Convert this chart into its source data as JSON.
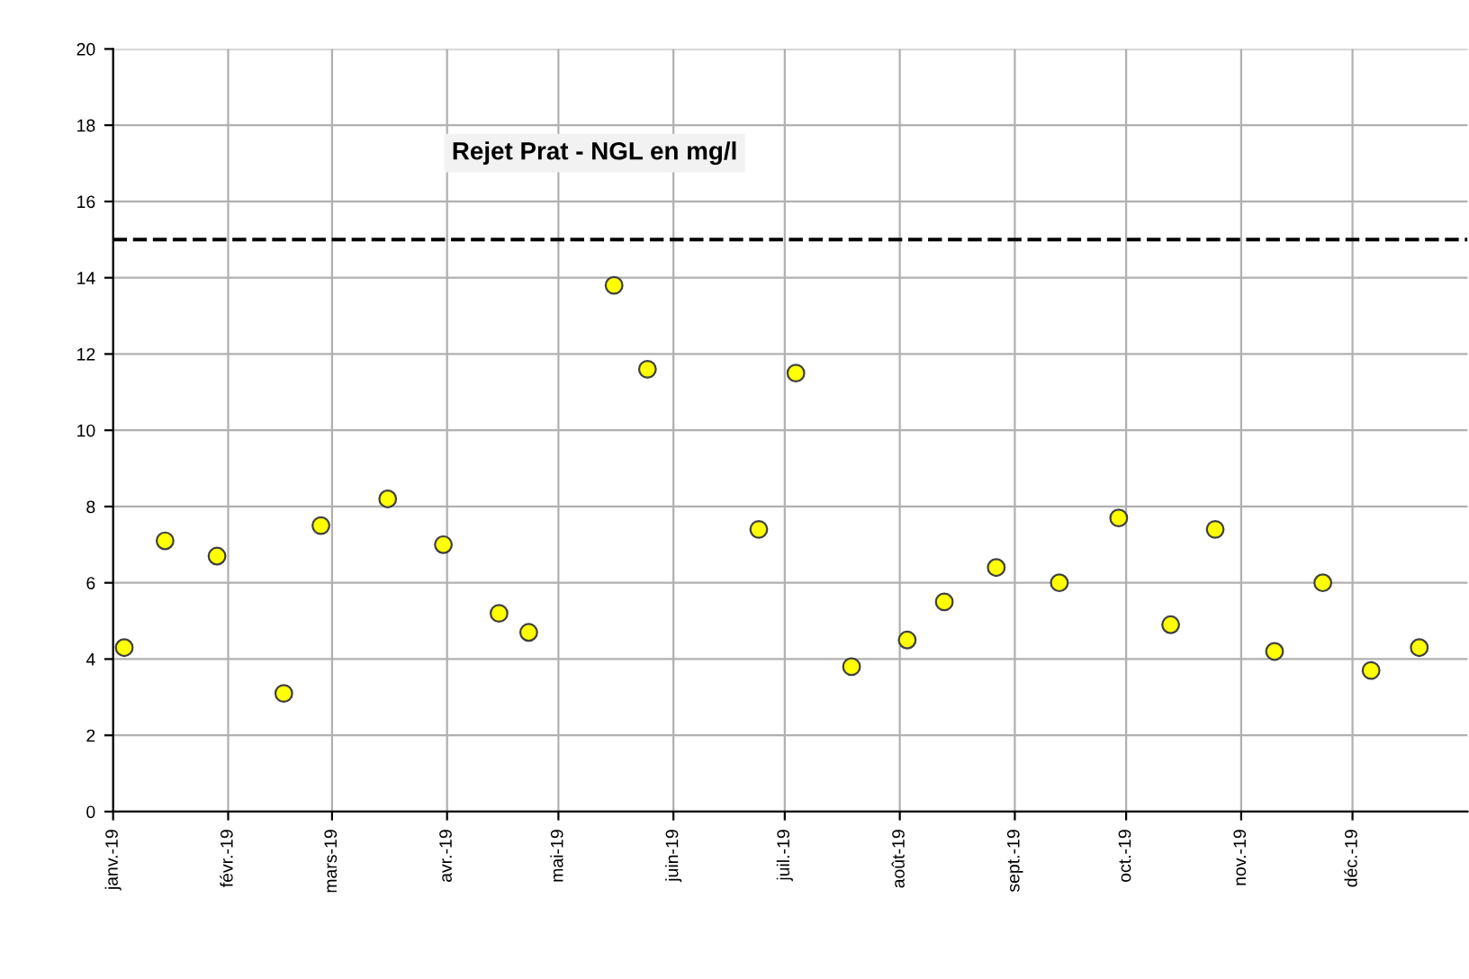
{
  "chart_data": {
    "type": "scatter",
    "title": "Rejet Prat - NGL en mg/l",
    "x": [
      "2019-01-04",
      "2019-01-15",
      "2019-01-29",
      "2019-02-16",
      "2019-02-26",
      "2019-03-16",
      "2019-03-31",
      "2019-04-15",
      "2019-04-23",
      "2019-05-16",
      "2019-05-25",
      "2019-06-24",
      "2019-07-04",
      "2019-07-19",
      "2019-08-03",
      "2019-08-13",
      "2019-08-27",
      "2019-09-13",
      "2019-09-29",
      "2019-10-13",
      "2019-10-25",
      "2019-11-10",
      "2019-11-23",
      "2019-12-06",
      "2019-12-19"
    ],
    "series": [
      {
        "color": "#ffff00",
        "values": [
          4.3,
          7.1,
          6.7,
          3.1,
          7.5,
          8.2,
          7.0,
          5.2,
          4.7,
          13.8,
          11.6,
          7.4,
          11.5,
          3.8,
          4.5,
          5.5,
          6.4,
          6.0,
          7.7,
          4.9,
          7.4,
          4.2,
          6.0,
          3.7,
          4.3
        ]
      }
    ],
    "marker": "circle",
    "xlim": [
      "2019-01-01",
      "2020-01-01"
    ],
    "xticks": [
      {
        "value": "2019-01-01",
        "label": "janv.-19"
      },
      {
        "value": "2019-02-01",
        "label": "févr.-19"
      },
      {
        "value": "2019-03-01",
        "label": "mars-19"
      },
      {
        "value": "2019-04-01",
        "label": "avr.-19"
      },
      {
        "value": "2019-05-01",
        "label": "mai-19"
      },
      {
        "value": "2019-06-01",
        "label": "juin-19"
      },
      {
        "value": "2019-07-01",
        "label": "juil.-19"
      },
      {
        "value": "2019-08-01",
        "label": "août-19"
      },
      {
        "value": "2019-09-01",
        "label": "sept.-19"
      },
      {
        "value": "2019-10-01",
        "label": "oct.-19"
      },
      {
        "value": "2019-11-01",
        "label": "nov.-19"
      },
      {
        "value": "2019-12-01",
        "label": "déc.-19"
      }
    ],
    "ylim": [
      0,
      20
    ],
    "yticks": [
      0,
      2,
      4,
      6,
      8,
      10,
      12,
      14,
      16,
      18,
      20
    ],
    "ref_lines": [
      {
        "axis": "y",
        "value": 15,
        "color": "#000000",
        "line_style": "dashed"
      }
    ],
    "grid": true
  }
}
